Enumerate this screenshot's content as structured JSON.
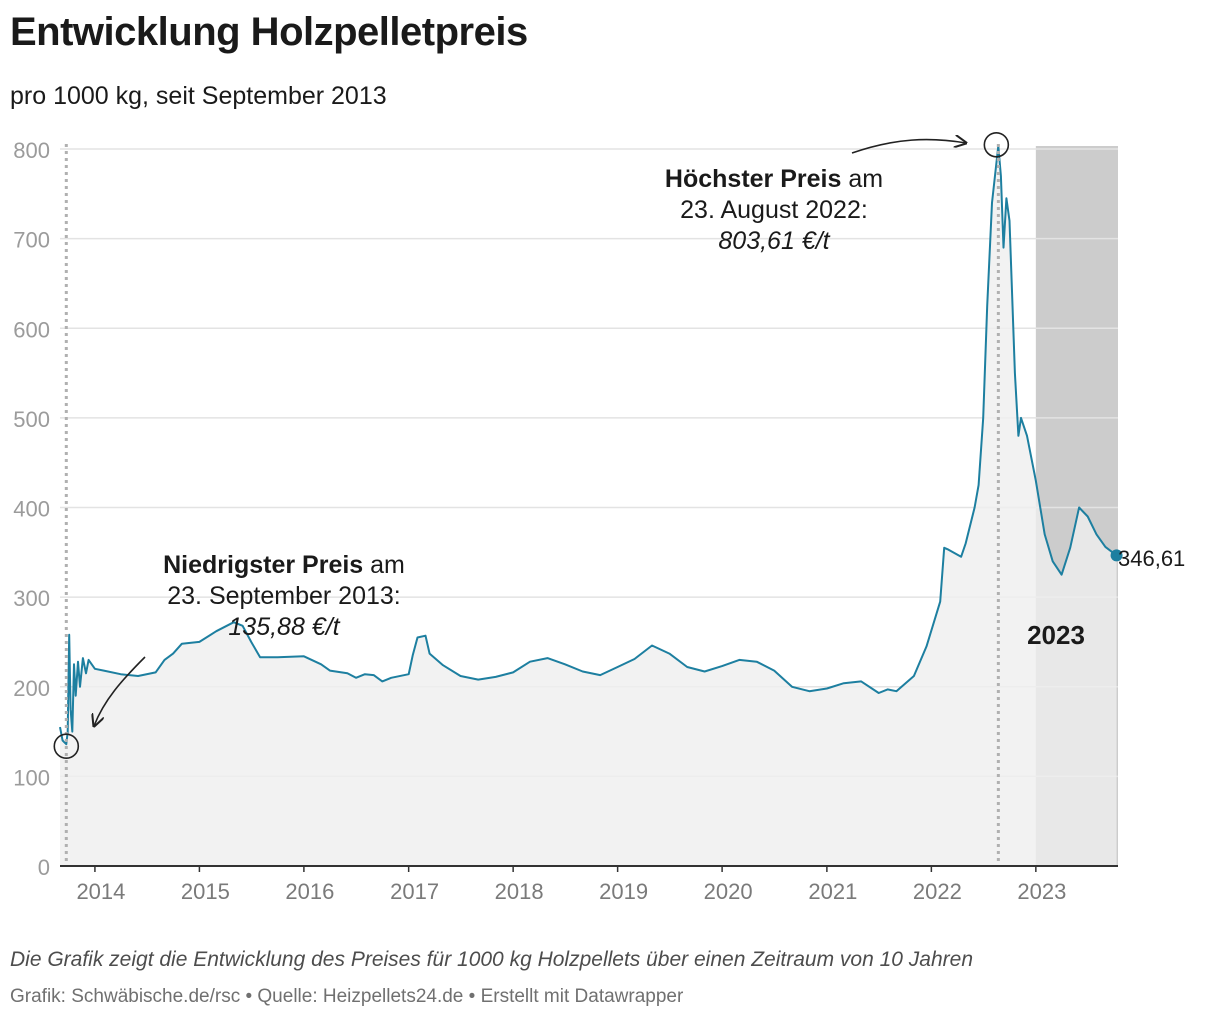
{
  "header": {
    "title": "Entwicklung Holzpelletpreis",
    "subtitle": "pro 1000 kg, seit September 2013"
  },
  "footer": {
    "description": "Die Grafik zeigt die Entwicklung des Preises für 1000 kg Holzpellets über einen Zeitraum von 10 Jahren",
    "source": "Grafik: Schwäbische.de/rsc • Quelle: Heizpellets24.de • Erstellt mit Datawrapper"
  },
  "colors": {
    "line": "#1d7fa0",
    "area": "#efefef",
    "highlight_band": "#cccccc",
    "grid": "#e3e3e3",
    "axis_text": "#9b9b9b"
  },
  "annotations": {
    "low": {
      "bold": "Niedrigster Preis",
      "rest": " am",
      "line2": "23. September 2013:",
      "value": "135,88 €/t"
    },
    "high": {
      "bold": "Höchster Preis",
      "rest": " am",
      "line2": "23. August 2022:",
      "value": "803,61 €/t"
    },
    "band_label": "2023",
    "last_value_label": "346,61"
  },
  "chart_data": {
    "type": "area",
    "title": "Entwicklung Holzpelletpreis",
    "subtitle": "pro 1000 kg, seit September 2013",
    "ylim": [
      0,
      800
    ],
    "yticks": [
      0,
      100,
      200,
      300,
      400,
      500,
      600,
      700,
      800
    ],
    "xlim": [
      "2013-09-01",
      "2023-10-15"
    ],
    "xticks": [
      "2014",
      "2015",
      "2016",
      "2017",
      "2018",
      "2019",
      "2020",
      "2021",
      "2022",
      "2023"
    ],
    "grid": true,
    "highlight": {
      "from": "2023-01-01",
      "to": "2023-10-15",
      "label": "2023"
    },
    "reference_lines": [
      "2013-09-23",
      "2022-08-23"
    ],
    "series": [
      {
        "values": [
          [
            "2013-09-01",
            155
          ],
          [
            "2013-09-10",
            140
          ],
          [
            "2013-09-23",
            135.88
          ],
          [
            "2013-09-28",
            150
          ],
          [
            "2013-10-03",
            258
          ],
          [
            "2013-10-08",
            175
          ],
          [
            "2013-10-14",
            150
          ],
          [
            "2013-10-20",
            225
          ],
          [
            "2013-10-26",
            190
          ],
          [
            "2013-11-03",
            228
          ],
          [
            "2013-11-10",
            200
          ],
          [
            "2013-11-20",
            232
          ],
          [
            "2013-12-01",
            215
          ],
          [
            "2013-12-10",
            230
          ],
          [
            "2014-01-01",
            220
          ],
          [
            "2014-02-01",
            218
          ],
          [
            "2014-04-01",
            214
          ],
          [
            "2014-06-01",
            212
          ],
          [
            "2014-08-01",
            216
          ],
          [
            "2014-09-01",
            230
          ],
          [
            "2014-10-01",
            237
          ],
          [
            "2014-11-01",
            248
          ],
          [
            "2015-01-01",
            250
          ],
          [
            "2015-03-01",
            262
          ],
          [
            "2015-05-01",
            272
          ],
          [
            "2015-06-01",
            268
          ],
          [
            "2015-07-01",
            250
          ],
          [
            "2015-08-01",
            233
          ],
          [
            "2015-10-01",
            233
          ],
          [
            "2016-01-01",
            234
          ],
          [
            "2016-03-01",
            225
          ],
          [
            "2016-04-01",
            218
          ],
          [
            "2016-06-01",
            215
          ],
          [
            "2016-07-01",
            210
          ],
          [
            "2016-08-01",
            214
          ],
          [
            "2016-09-01",
            213
          ],
          [
            "2016-10-01",
            206
          ],
          [
            "2016-11-01",
            210
          ],
          [
            "2017-01-01",
            214
          ],
          [
            "2017-01-15",
            235
          ],
          [
            "2017-02-01",
            255
          ],
          [
            "2017-03-01",
            257
          ],
          [
            "2017-03-15",
            237
          ],
          [
            "2017-05-01",
            224
          ],
          [
            "2017-07-01",
            212
          ],
          [
            "2017-09-01",
            208
          ],
          [
            "2017-11-01",
            211
          ],
          [
            "2018-01-01",
            216
          ],
          [
            "2018-03-01",
            228
          ],
          [
            "2018-05-01",
            232
          ],
          [
            "2018-07-01",
            225
          ],
          [
            "2018-09-01",
            217
          ],
          [
            "2018-11-01",
            213
          ],
          [
            "2019-01-01",
            222
          ],
          [
            "2019-03-01",
            231
          ],
          [
            "2019-05-01",
            246
          ],
          [
            "2019-07-01",
            237
          ],
          [
            "2019-09-01",
            222
          ],
          [
            "2019-11-01",
            217
          ],
          [
            "2020-01-01",
            223
          ],
          [
            "2020-03-01",
            230
          ],
          [
            "2020-05-01",
            228
          ],
          [
            "2020-07-01",
            218
          ],
          [
            "2020-09-01",
            200
          ],
          [
            "2020-11-01",
            195
          ],
          [
            "2021-01-01",
            198
          ],
          [
            "2021-03-01",
            204
          ],
          [
            "2021-05-01",
            206
          ],
          [
            "2021-07-01",
            193
          ],
          [
            "2021-08-01",
            197
          ],
          [
            "2021-09-01",
            195
          ],
          [
            "2021-11-01",
            212
          ],
          [
            "2021-12-15",
            245
          ],
          [
            "2022-02-01",
            295
          ],
          [
            "2022-02-15",
            355
          ],
          [
            "2022-03-01",
            353
          ],
          [
            "2022-04-15",
            345
          ],
          [
            "2022-05-01",
            360
          ],
          [
            "2022-06-01",
            400
          ],
          [
            "2022-06-15",
            425
          ],
          [
            "2022-07-01",
            500
          ],
          [
            "2022-07-15",
            625
          ],
          [
            "2022-08-01",
            740
          ],
          [
            "2022-08-23",
            803.61
          ],
          [
            "2022-09-01",
            770
          ],
          [
            "2022-09-10",
            690
          ],
          [
            "2022-09-20",
            745
          ],
          [
            "2022-10-01",
            720
          ],
          [
            "2022-10-20",
            550
          ],
          [
            "2022-11-01",
            480
          ],
          [
            "2022-11-10",
            500
          ],
          [
            "2022-12-01",
            480
          ],
          [
            "2023-01-01",
            430
          ],
          [
            "2023-02-01",
            370
          ],
          [
            "2023-03-01",
            340
          ],
          [
            "2023-04-01",
            325
          ],
          [
            "2023-05-01",
            355
          ],
          [
            "2023-06-01",
            400
          ],
          [
            "2023-07-01",
            390
          ],
          [
            "2023-08-01",
            370
          ],
          [
            "2023-09-01",
            356
          ],
          [
            "2023-10-10",
            346.61
          ]
        ]
      }
    ]
  }
}
